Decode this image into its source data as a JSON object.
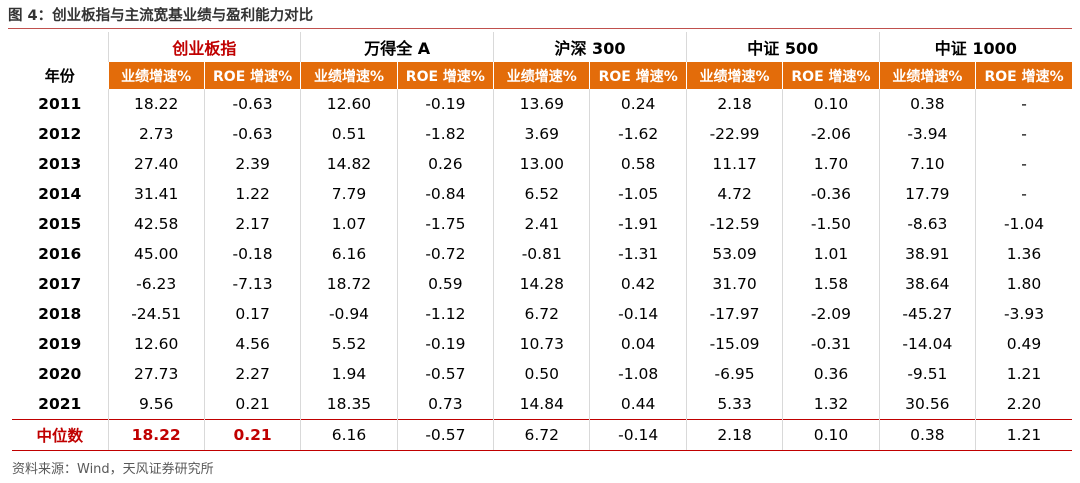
{
  "title": "图 4：创业板指与主流宽基业绩与盈利能力对比",
  "header": {
    "year_label": "年份",
    "groups": [
      "创业板指",
      "万得全 A",
      "沪深 300",
      "中证 500",
      "中证 1000"
    ],
    "sub_labels": [
      "业绩增速%",
      "ROE 增速%",
      "业绩增速%",
      "ROE 增速%",
      "业绩增速%",
      "ROE 增速%",
      "业绩增速%",
      "ROE 增速%",
      "业绩增速%",
      "ROE 增速%"
    ]
  },
  "rows": [
    {
      "year": "2011",
      "cells": [
        "18.22",
        "-0.63",
        "12.60",
        "-0.19",
        "13.69",
        "0.24",
        "2.18",
        "0.10",
        "0.38",
        "-"
      ]
    },
    {
      "year": "2012",
      "cells": [
        "2.73",
        "-0.63",
        "0.51",
        "-1.82",
        "3.69",
        "-1.62",
        "-22.99",
        "-2.06",
        "-3.94",
        "-"
      ]
    },
    {
      "year": "2013",
      "cells": [
        "27.40",
        "2.39",
        "14.82",
        "0.26",
        "13.00",
        "0.58",
        "11.17",
        "1.70",
        "7.10",
        "-"
      ]
    },
    {
      "year": "2014",
      "cells": [
        "31.41",
        "1.22",
        "7.79",
        "-0.84",
        "6.52",
        "-1.05",
        "4.72",
        "-0.36",
        "17.79",
        "-"
      ]
    },
    {
      "year": "2015",
      "cells": [
        "42.58",
        "2.17",
        "1.07",
        "-1.75",
        "2.41",
        "-1.91",
        "-12.59",
        "-1.50",
        "-8.63",
        "-1.04"
      ]
    },
    {
      "year": "2016",
      "cells": [
        "45.00",
        "-0.18",
        "6.16",
        "-0.72",
        "-0.81",
        "-1.31",
        "53.09",
        "1.01",
        "38.91",
        "1.36"
      ]
    },
    {
      "year": "2017",
      "cells": [
        "-6.23",
        "-7.13",
        "18.72",
        "0.59",
        "14.28",
        "0.42",
        "31.70",
        "1.58",
        "38.64",
        "1.80"
      ]
    },
    {
      "year": "2018",
      "cells": [
        "-24.51",
        "0.17",
        "-0.94",
        "-1.12",
        "6.72",
        "-0.14",
        "-17.97",
        "-2.09",
        "-45.27",
        "-3.93"
      ]
    },
    {
      "year": "2019",
      "cells": [
        "12.60",
        "4.56",
        "5.52",
        "-0.19",
        "10.73",
        "0.04",
        "-15.09",
        "-0.31",
        "-14.04",
        "0.49"
      ]
    },
    {
      "year": "2020",
      "cells": [
        "27.73",
        "2.27",
        "1.94",
        "-0.57",
        "0.50",
        "-1.08",
        "-6.95",
        "0.36",
        "-9.51",
        "1.21"
      ]
    },
    {
      "year": "2021",
      "cells": [
        "9.56",
        "0.21",
        "18.35",
        "0.73",
        "14.84",
        "0.44",
        "5.33",
        "1.32",
        "30.56",
        "2.20"
      ]
    }
  ],
  "median": {
    "label": "中位数",
    "cells": [
      "18.22",
      "0.21",
      "6.16",
      "-0.57",
      "6.72",
      "-0.14",
      "2.18",
      "0.10",
      "0.38",
      "1.21"
    ]
  },
  "source": "资料来源：Wind，天风证券研究所",
  "colors": {
    "header_fill": "#e36c0a",
    "highlight_text": "#c00000",
    "rule": "#c0504d"
  }
}
